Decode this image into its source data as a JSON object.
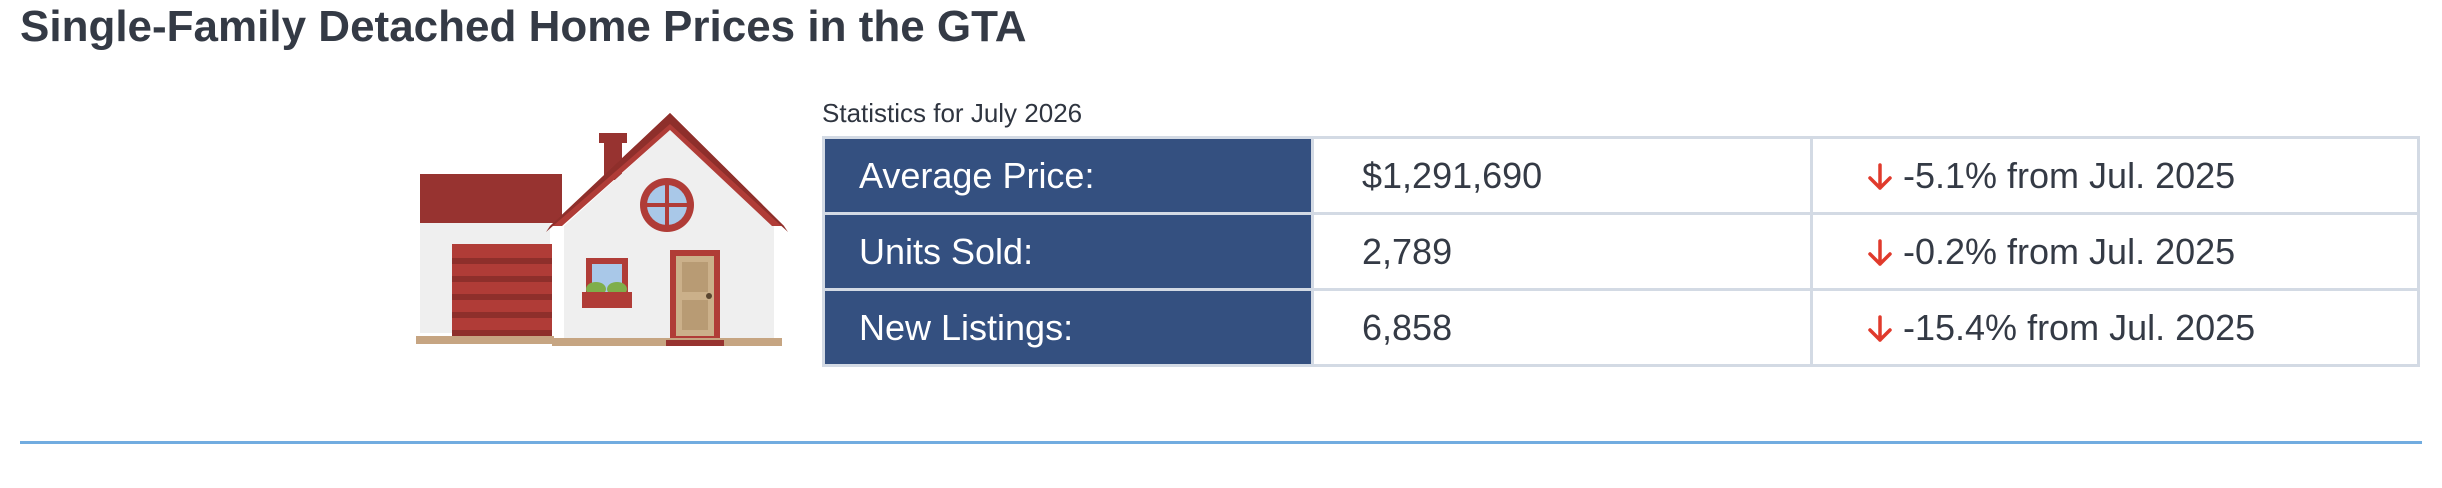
{
  "title": "Single-Family Detached Home Prices in the GTA",
  "caption": "Statistics for July 2026",
  "rows": [
    {
      "label": "Average Price:",
      "value": "$1,291,690",
      "change": "-5.1% from Jul. 2025"
    },
    {
      "label": "Units Sold:",
      "value": "2,789",
      "change": "-0.2% from Jul. 2025"
    },
    {
      "label": "New Listings:",
      "value": "6,858",
      "change": "-15.4% from Jul. 2025"
    }
  ],
  "icons": {
    "house": "house-icon",
    "change": "down-arrow-icon"
  },
  "colors": {
    "label_bg": "#345080",
    "down_arrow": "#e03a2c",
    "divider": "#71ace0"
  }
}
